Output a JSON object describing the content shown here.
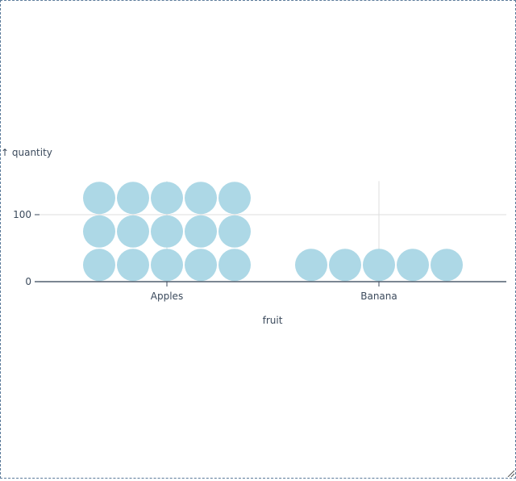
{
  "chart_data": {
    "type": "waffle",
    "categories": [
      "Apples",
      "Banana"
    ],
    "values": [
      150,
      50
    ],
    "unit": 10,
    "xlabel": "fruit",
    "ylabel": "↑ quantity",
    "ylim": [
      0,
      150
    ],
    "yticks": [
      0,
      100
    ],
    "grid": true,
    "color": "#add8e6"
  }
}
